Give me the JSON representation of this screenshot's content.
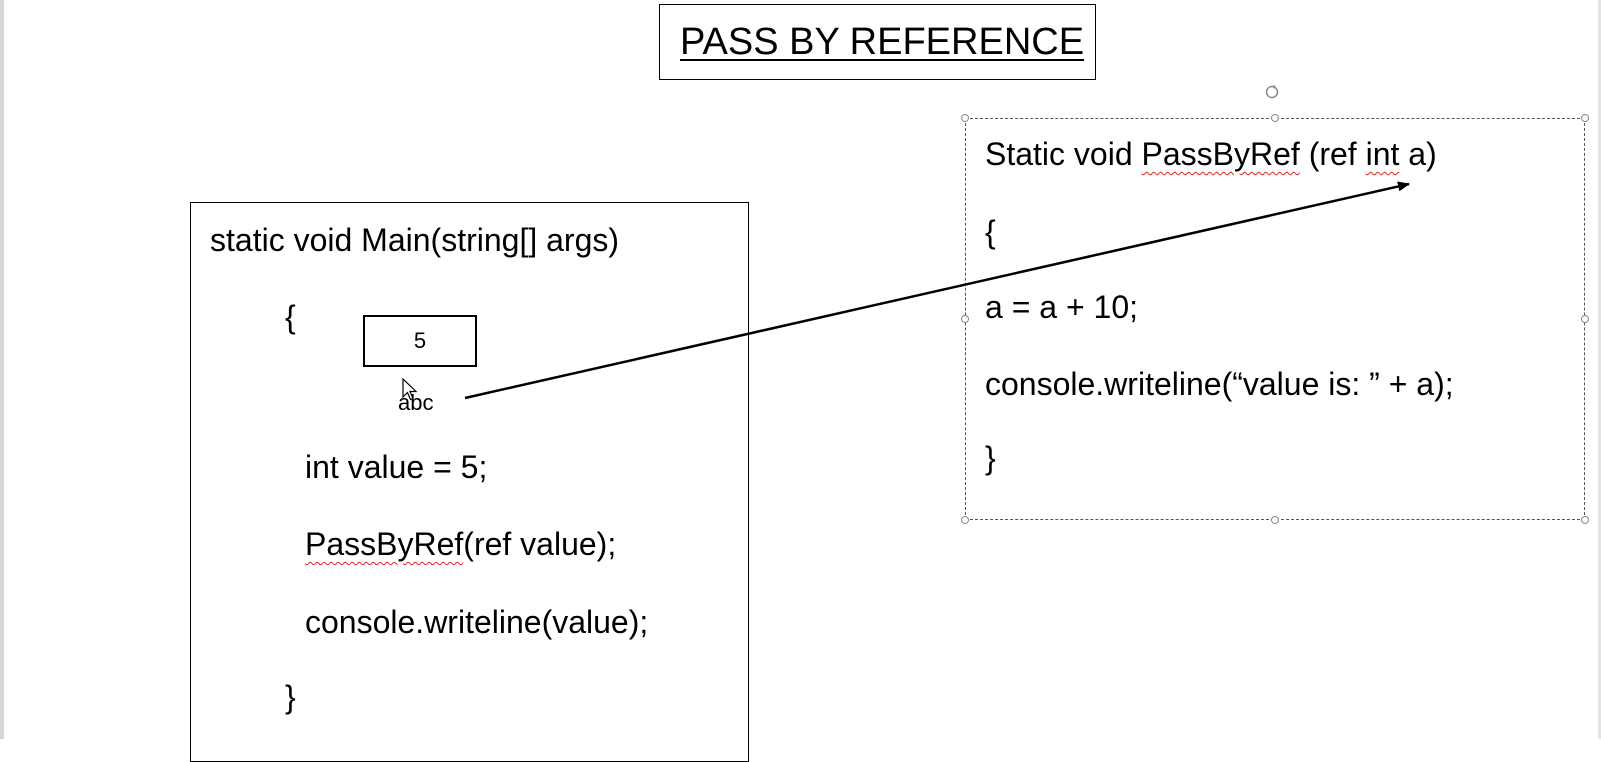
{
  "title": "PASS BY REFERENCE",
  "main_method": {
    "signature": "static void Main(string[] args)",
    "open_brace": "{",
    "declaration": "int value = 5;",
    "call_name": "PassByRef",
    "call_args": "(ref value);",
    "print": "console.writeline(value);",
    "close_brace": "}"
  },
  "memory_box": {
    "value": "5",
    "label": "abc"
  },
  "ref_method": {
    "sig_prefix": "Static void ",
    "sig_name": "PassByRef",
    "sig_mid": " (ref ",
    "sig_type": "int",
    "sig_suffix": " a)",
    "open_brace": "{",
    "assignment": "a = a + 10;",
    "print": "console.writeline(“value is: ” + a);",
    "close_brace": "}"
  },
  "colors": {
    "spellcheck": "#e02020",
    "stroke": "#000000"
  }
}
